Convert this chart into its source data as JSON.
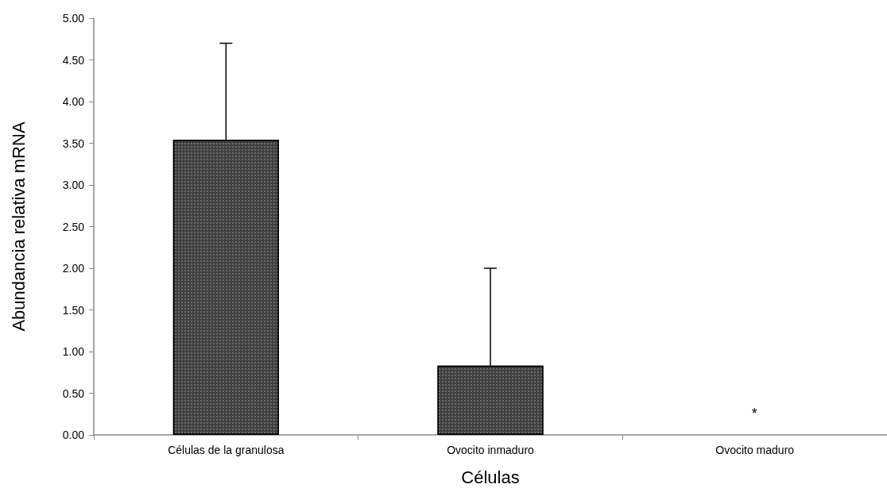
{
  "chart_data": {
    "type": "bar",
    "xlabel": "Células",
    "ylabel": "Abundancia relativa mRNA",
    "categories": [
      "Células de la granulosa",
      "Ovocito inmaduro",
      "Ovocito maduro"
    ],
    "values": [
      3.54,
      0.83,
      0
    ],
    "errors": [
      [
        3.54,
        4.7
      ],
      [
        0.83,
        2.0
      ],
      null
    ],
    "color": "#404040",
    "ylim": [
      0,
      5
    ],
    "yticks": [
      {
        "value": 0,
        "label": "0.00"
      },
      {
        "value": 0.5,
        "label": "0.50"
      },
      {
        "value": 1,
        "label": "1.00"
      },
      {
        "value": 1.5,
        "label": "1.50"
      },
      {
        "value": 2,
        "label": "2.00"
      },
      {
        "value": 2.5,
        "label": "2.50"
      },
      {
        "value": 3,
        "label": "3.00"
      },
      {
        "value": 3.5,
        "label": "3.50"
      },
      {
        "value": 4,
        "label": "4.00"
      },
      {
        "value": 4.5,
        "label": "4.50"
      },
      {
        "value": 5,
        "label": "5.00"
      }
    ],
    "annotations": [
      "*"
    ],
    "grid": false
  }
}
